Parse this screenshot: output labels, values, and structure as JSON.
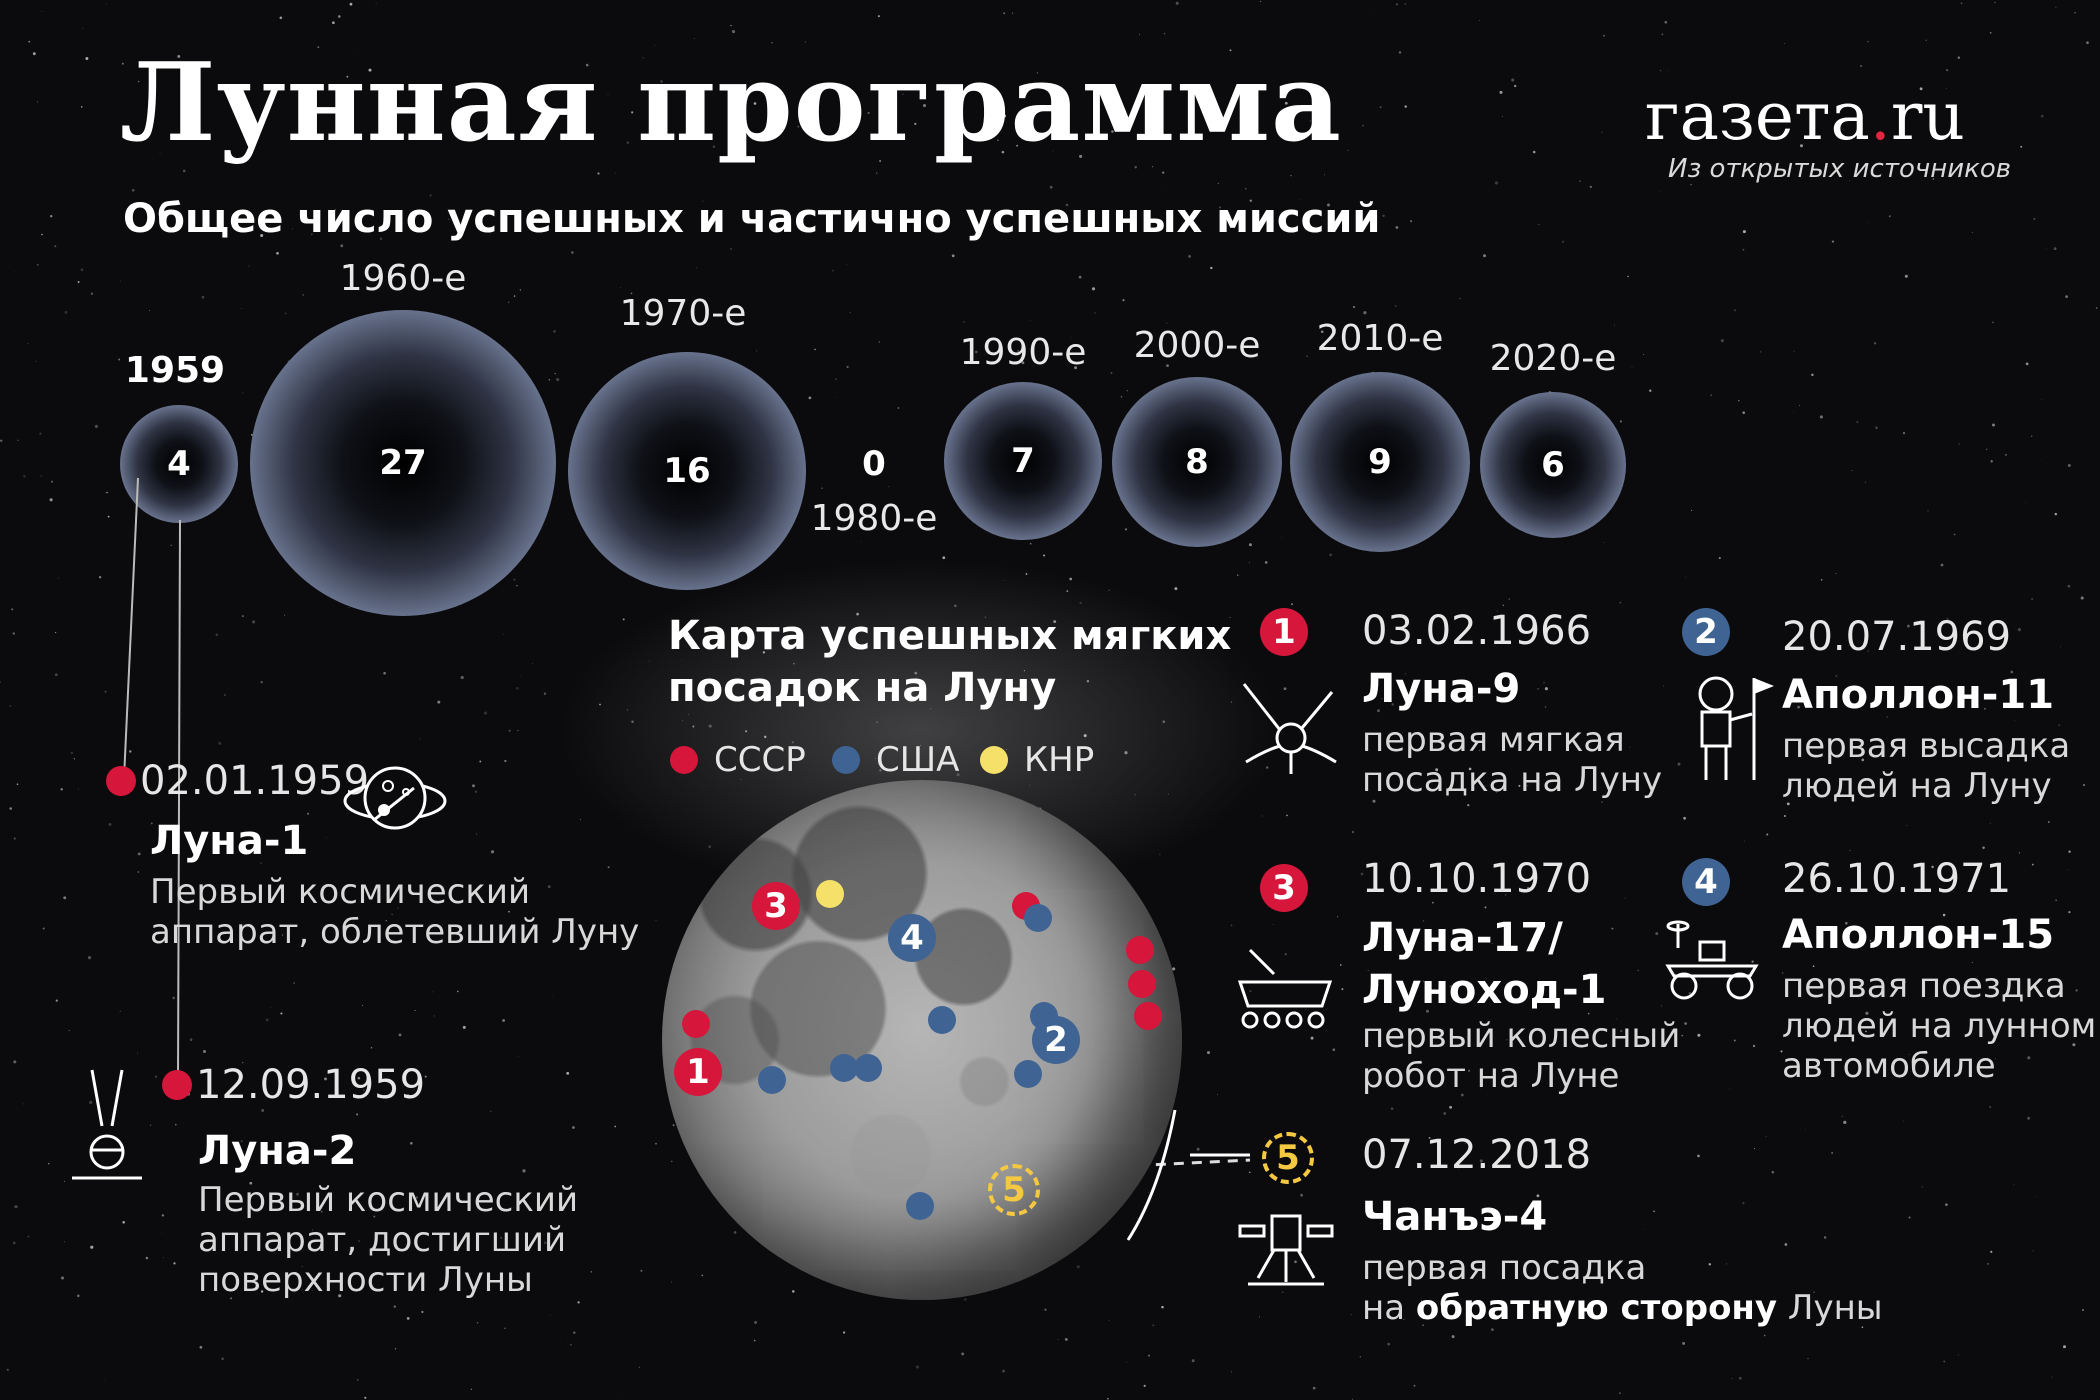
{
  "header": {
    "title": "Лунная программа",
    "subtitle": "Общее число успешных и частично успешных миссий",
    "logo_main": "газета",
    "logo_dot": ".",
    "logo_tld": "ru",
    "source": "Из открытых источников"
  },
  "decades": [
    {
      "label": "1959",
      "value": "4"
    },
    {
      "label": "1960-е",
      "value": "27"
    },
    {
      "label": "1970-е",
      "value": "16"
    },
    {
      "label": "1980-е",
      "value": "0"
    },
    {
      "label": "1990-е",
      "value": "7"
    },
    {
      "label": "2000-е",
      "value": "8"
    },
    {
      "label": "2010-е",
      "value": "9"
    },
    {
      "label": "2020-е",
      "value": "6"
    }
  ],
  "early": [
    {
      "date": "02.01.1959",
      "name": "Луна-1",
      "desc_l1": "Первый космический",
      "desc_l2": "аппарат, облетевший Луну"
    },
    {
      "date": "12.09.1959",
      "name": "Луна-2",
      "desc_l1": "Первый космический",
      "desc_l2": "аппарат, достигший",
      "desc_l3": "поверхности Луны"
    }
  ],
  "map": {
    "title_l1": "Карта успешных мягких",
    "title_l2": "посадок на Луну",
    "legend": [
      {
        "label": "СССР",
        "color": "#d6163a"
      },
      {
        "label": "США",
        "color": "#3f6493"
      },
      {
        "label": "КНР",
        "color": "#f5e16a"
      }
    ]
  },
  "landings": [
    {
      "num": "1",
      "date": "03.02.1966",
      "name": "Луна-9",
      "desc_l1": "первая мягкая",
      "desc_l2": "посадка на Луну"
    },
    {
      "num": "2",
      "date": "20.07.1969",
      "name": "Аполлон-11",
      "desc_l1": "первая высадка",
      "desc_l2": "людей на Луну"
    },
    {
      "num": "3",
      "date": "10.10.1970",
      "name_l1": "Луна-17/",
      "name_l2": "Луноход-1",
      "desc_l1": "первый колесный",
      "desc_l2": "робот на Луне"
    },
    {
      "num": "4",
      "date": "26.10.1971",
      "name": "Аполлон-15",
      "desc_l1": "первая поездка",
      "desc_l2": "людей на лунном",
      "desc_l3": "автомобиле"
    },
    {
      "num": "5",
      "date": "07.12.2018",
      "name": "Чанъэ-4",
      "desc_l1": "первая посадка",
      "desc_l2_pre": "на ",
      "desc_l2_bold": "обратную сторону",
      "desc_l2_post": " Луны"
    }
  ],
  "colors": {
    "ussr": "#d6163a",
    "usa": "#3f6493",
    "china": "#f5e16a",
    "bubble_rim": "#b8c8f0"
  }
}
